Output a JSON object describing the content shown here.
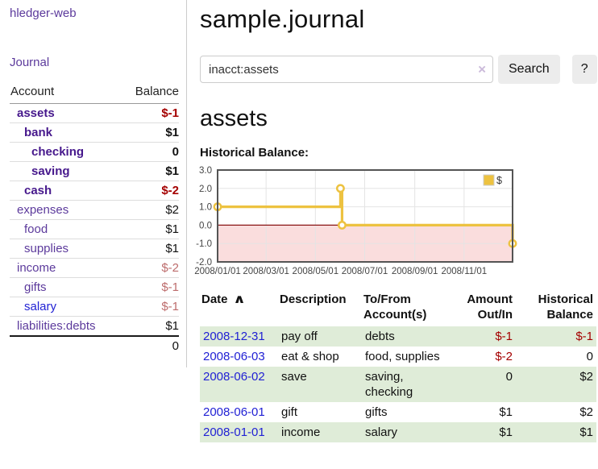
{
  "app": {
    "title": "hledger-web",
    "nav_journal": "Journal"
  },
  "sidebar": {
    "header": {
      "account": "Account",
      "balance": "Balance"
    },
    "accounts": [
      {
        "name": "assets",
        "depth": 1,
        "current": true,
        "balance": "$-1",
        "neg": "neg-strong"
      },
      {
        "name": "bank",
        "depth": 2,
        "current": true,
        "balance": "$1",
        "neg": ""
      },
      {
        "name": "checking",
        "depth": 3,
        "current": true,
        "balance": "0",
        "neg": ""
      },
      {
        "name": "saving",
        "depth": 3,
        "current": true,
        "balance": "$1",
        "neg": ""
      },
      {
        "name": "cash",
        "depth": 2,
        "current": true,
        "balance": "$-2",
        "neg": "neg-strong"
      },
      {
        "name": "expenses",
        "depth": 1,
        "current": false,
        "balance": "$2",
        "neg": ""
      },
      {
        "name": "food",
        "depth": 2,
        "current": false,
        "balance": "$1",
        "neg": ""
      },
      {
        "name": "supplies",
        "depth": 2,
        "current": false,
        "balance": "$1",
        "neg": ""
      },
      {
        "name": "income",
        "depth": 1,
        "current": false,
        "balance": "$-2",
        "neg": "neg-soft"
      },
      {
        "name": "gifts",
        "depth": 2,
        "current": false,
        "balance": "$-1",
        "neg": "neg-soft"
      },
      {
        "name": "salary",
        "depth": 2,
        "current": false,
        "balance": "$-1",
        "neg": "neg-soft",
        "link_color": "blue"
      },
      {
        "name": "liabilities:debts",
        "depth": 1,
        "current": false,
        "balance": "$1",
        "neg": ""
      }
    ],
    "total": "0"
  },
  "main": {
    "title": "sample.journal",
    "search": {
      "value": "inacct:assets",
      "clear_glyph": "×",
      "button_label": "Search",
      "help_label": "?"
    },
    "account_heading": "assets"
  },
  "chart_data": {
    "type": "line",
    "title": "Historical Balance:",
    "steps": true,
    "x_start": "2008-01-01",
    "x_end": "2008-12-31",
    "x_ticks": [
      "2008/01/01",
      "2008/03/01",
      "2008/05/01",
      "2008/07/01",
      "2008/09/01",
      "2008/11/01"
    ],
    "y_ticks": [
      3.0,
      2.0,
      1.0,
      0.0,
      -1.0,
      -2.0
    ],
    "ylim": [
      -2,
      3
    ],
    "series": [
      {
        "name": "$",
        "color": "#edc240",
        "points": [
          [
            "2008-01-01",
            1
          ],
          [
            "2008-06-01",
            2
          ],
          [
            "2008-06-03",
            0
          ],
          [
            "2008-12-31",
            -1
          ]
        ]
      }
    ],
    "legend_position": "top-right",
    "grid": true,
    "zero_line_color": "#8a1515",
    "negative_region_color": "#fadddd",
    "border_color": "#545454",
    "gridline_color": "#e4e4e4"
  },
  "table": {
    "headers": [
      {
        "label": "Date",
        "align": "left",
        "sort_icon": "∧"
      },
      {
        "label": "Description",
        "align": "left"
      },
      {
        "label": "To/From\nAccount(s)",
        "align": "left"
      },
      {
        "label": "Amount\nOut/In",
        "align": "right"
      },
      {
        "label": "Historical\nBalance",
        "align": "right"
      }
    ],
    "rows": [
      {
        "date": "2008-12-31",
        "description": "pay off",
        "accounts": "debts",
        "amount": "$-1",
        "amount_class": "neg-strong",
        "balance": "$-1",
        "balance_class": "neg-strong",
        "shaded": true
      },
      {
        "date": "2008-06-03",
        "description": "eat & shop",
        "accounts": "food, supplies",
        "amount": "$-2",
        "amount_class": "neg-strong",
        "balance": "0",
        "balance_class": "",
        "shaded": false
      },
      {
        "date": "2008-06-02",
        "description": "save",
        "accounts": "saving,\nchecking",
        "amount": "0",
        "amount_class": "",
        "balance": "$2",
        "balance_class": "",
        "shaded": true
      },
      {
        "date": "2008-06-01",
        "description": "gift",
        "accounts": "gifts",
        "amount": "$1",
        "amount_class": "",
        "balance": "$2",
        "balance_class": "",
        "shaded": false
      },
      {
        "date": "2008-01-01",
        "description": "income",
        "accounts": "salary",
        "amount": "$1",
        "amount_class": "",
        "balance": "$1",
        "balance_class": "",
        "shaded": true
      }
    ]
  }
}
